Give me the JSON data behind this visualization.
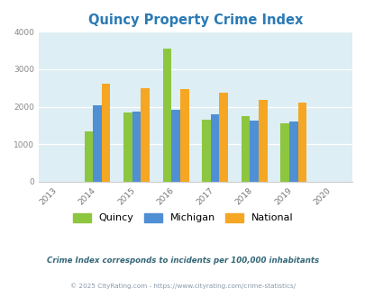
{
  "title": "Quincy Property Crime Index",
  "title_color": "#2a7ab5",
  "years": [
    2013,
    2014,
    2015,
    2016,
    2017,
    2018,
    2019,
    2020
  ],
  "data_years": [
    2014,
    2015,
    2016,
    2017,
    2018,
    2019
  ],
  "quincy": [
    1350,
    1840,
    3540,
    1650,
    1760,
    1560
  ],
  "michigan": [
    2040,
    1870,
    1910,
    1800,
    1630,
    1600
  ],
  "national": [
    2620,
    2500,
    2460,
    2380,
    2180,
    2100
  ],
  "quincy_color": "#8dc63f",
  "michigan_color": "#4f8fd4",
  "national_color": "#f5a623",
  "fig_bg": "#ffffff",
  "plot_bg": "#ddeef5",
  "ylim": [
    0,
    4000
  ],
  "yticks": [
    0,
    1000,
    2000,
    3000,
    4000
  ],
  "footnote1": "Crime Index corresponds to incidents per 100,000 inhabitants",
  "footnote2": "© 2025 CityRating.com - https://www.cityrating.com/crime-statistics/",
  "footnote1_color": "#336677",
  "footnote2_color": "#8899aa",
  "legend_labels": [
    "Quincy",
    "Michigan",
    "National"
  ],
  "bar_width": 0.22
}
